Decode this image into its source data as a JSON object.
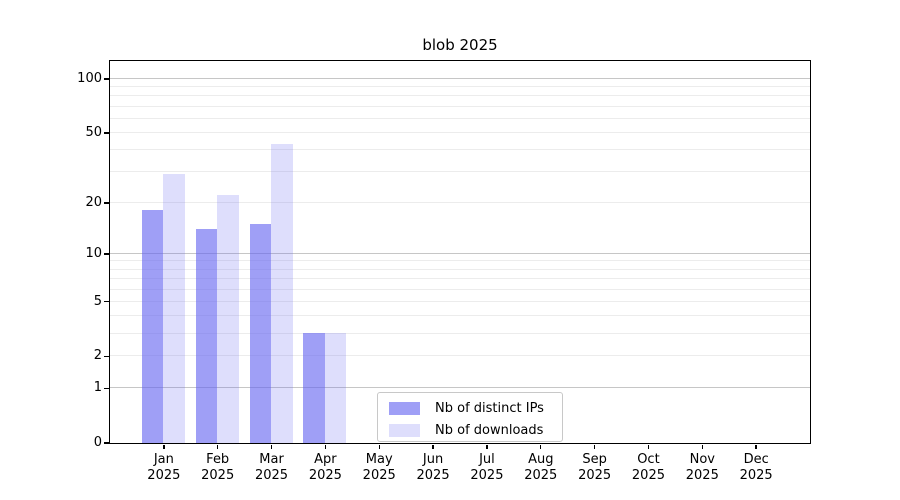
{
  "title": "blob 2025",
  "chart_data": {
    "type": "bar",
    "title": "blob 2025",
    "categories": [
      "Jan 2025",
      "Feb 2025",
      "Mar 2025",
      "Apr 2025",
      "May 2025",
      "Jun 2025",
      "Jul 2025",
      "Aug 2025",
      "Sep 2025",
      "Oct 2025",
      "Nov 2025",
      "Dec 2025"
    ],
    "series": [
      {
        "name": "Nb of distinct IPs",
        "values": [
          18,
          14,
          15,
          3,
          0,
          0,
          0,
          0,
          0,
          0,
          0,
          0
        ],
        "color": "rgba(100,100,240,0.62)",
        "color_hex_on_white": "#a8a8f3"
      },
      {
        "name": "Nb of downloads",
        "values": [
          29,
          22,
          43,
          3,
          0,
          0,
          0,
          0,
          0,
          0,
          0,
          0
        ],
        "color": "rgba(100,100,240,0.21)",
        "color_hex_on_white": "#dcdcf9"
      }
    ],
    "xlabel": "",
    "ylabel": "",
    "yscale": "log1p",
    "ylim": [
      0,
      126
    ],
    "y_tick_values": [
      0,
      1,
      2,
      5,
      10,
      20,
      50,
      100
    ],
    "y_tick_labels": [
      "0",
      "1",
      "2",
      "5",
      "10",
      "20",
      "50",
      "100"
    ],
    "grid": true,
    "grid_major_values": [
      1,
      10,
      100
    ],
    "grid_minor_values": [
      2,
      3,
      4,
      5,
      6,
      7,
      8,
      9,
      20,
      30,
      40,
      50,
      60,
      70,
      80,
      90
    ],
    "legend_position": "lower center"
  },
  "colors": {
    "grid_major": "#c6c6c6",
    "grid_minor": "#ececec",
    "axis": "#000000",
    "background": "#ffffff"
  }
}
